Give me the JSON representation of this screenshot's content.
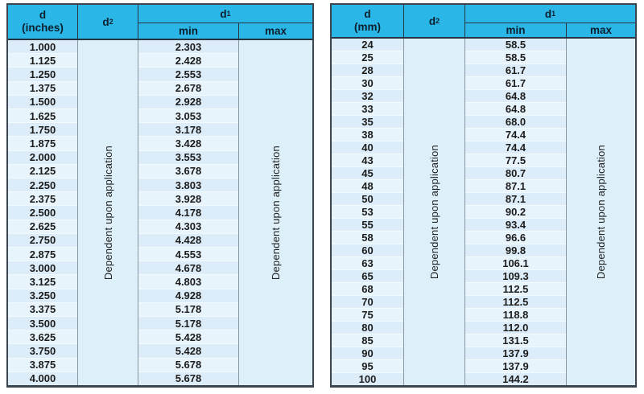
{
  "colors": {
    "header_bg": "#2ab7e8",
    "header_text": "#0d1f2d",
    "border_dark": "#3c454e",
    "grid_line": "#8897a2",
    "row_bg": "#dcedf9",
    "row_alt_bg": "#e7f4fc",
    "merged_bg": "#ddf0fa"
  },
  "tables": [
    {
      "name": "inches",
      "headers": {
        "d_top": "d",
        "d_unit": "(inches)",
        "d2_base": "d",
        "d2_sub": "2",
        "d1_base": "d",
        "d1_sub": "1",
        "min": "min",
        "max": "max"
      },
      "d2_note": "Dependent upon application",
      "max_note": "Dependent upon application",
      "d_values": [
        "1.000",
        "1.125",
        "1.250",
        "1.375",
        "1.500",
        "1.625",
        "1.750",
        "1.875",
        "2.000",
        "2.125",
        "2.250",
        "2.375",
        "2.500",
        "2.625",
        "2.750",
        "2.875",
        "3.000",
        "3.125",
        "3.250",
        "3.375",
        "3.500",
        "3.625",
        "3.750",
        "3.875",
        "4.000"
      ],
      "min_values": [
        "2.303",
        "2.428",
        "2.553",
        "2.678",
        "2.928",
        "3.053",
        "3.178",
        "3.428",
        "3.553",
        "3.678",
        "3.803",
        "3.928",
        "4.178",
        "4.303",
        "4.428",
        "4.553",
        "4.678",
        "4.803",
        "4.928",
        "5.178",
        "5.178",
        "5.428",
        "5.428",
        "5.678",
        "5.678"
      ]
    },
    {
      "name": "mm",
      "headers": {
        "d_top": "d",
        "d_unit": "(mm)",
        "d2_base": "d",
        "d2_sub": "2",
        "d1_base": "d",
        "d1_sub": "1",
        "min": "min",
        "max": "max"
      },
      "d2_note": "Dependent upon application",
      "max_note": "Dependent upon application",
      "d_values": [
        "24",
        "25",
        "28",
        "30",
        "32",
        "33",
        "35",
        "38",
        "40",
        "43",
        "45",
        "48",
        "50",
        "53",
        "55",
        "58",
        "60",
        "63",
        "65",
        "68",
        "70",
        "75",
        "80",
        "85",
        "90",
        "95",
        "100"
      ],
      "min_values": [
        "58.5",
        "58.5",
        "61.7",
        "61.7",
        "64.8",
        "64.8",
        "68.0",
        "74.4",
        "74.4",
        "77.5",
        "80.7",
        "87.1",
        "87.1",
        "90.2",
        "93.4",
        "96.6",
        "99.8",
        "106.1",
        "109.3",
        "112.5",
        "112.5",
        "118.8",
        "112.0",
        "131.5",
        "137.9",
        "137.9",
        "144.2"
      ]
    }
  ]
}
